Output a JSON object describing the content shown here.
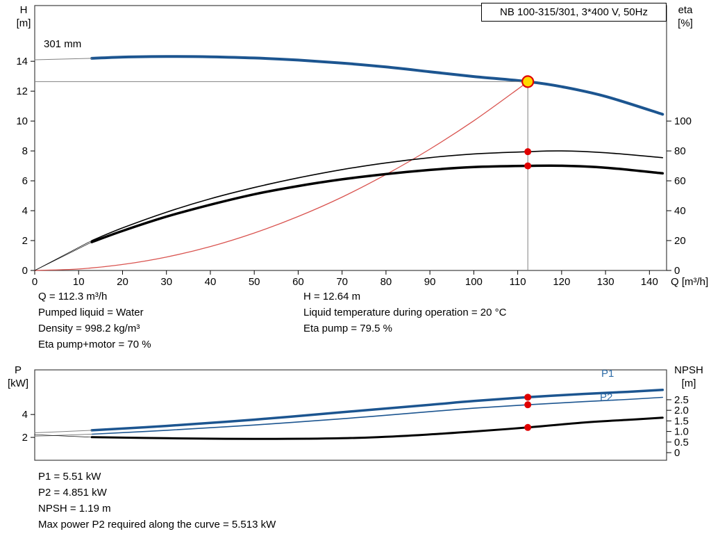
{
  "title_box": "NB 100-315/301, 3*400 V, 50Hz",
  "info_top": {
    "left": [
      "Q = 112.3 m³/h",
      "Pumped liquid = Water",
      "Density = 998.2 kg/m³",
      "Eta pump+motor = 70 %"
    ],
    "right": [
      "H = 12.64 m",
      "Liquid temperature during operation = 20 °C",
      "Eta pump = 79.5 %"
    ]
  },
  "info_bottom": [
    "P1 = 5.51 kW",
    "P2 = 4.851 kW",
    "NPSH = 1.19 m",
    "Max power P2 required along the curve = 5.513 kW"
  ],
  "colors": {
    "curve_blue": "#1c5590",
    "label_blue": "#2f6da8",
    "red": "#e00000",
    "system_red": "#d9534f",
    "black": "#000000",
    "gray": "#808080",
    "frame": "#404040",
    "duty_yellow": "#ffd800"
  },
  "chart_data": [
    {
      "type": "line",
      "name": "qh-eta-chart",
      "impeller_label": "301 mm",
      "x": {
        "label": "Q [m³/h]",
        "min": 0,
        "max": 143.9,
        "ticks": [
          0,
          10,
          20,
          30,
          40,
          50,
          60,
          70,
          80,
          90,
          100,
          110,
          120,
          130,
          140
        ]
      },
      "y_left": {
        "label": "H",
        "unit": "[m]",
        "min": 0,
        "max": 17.73,
        "ticks": [
          0,
          2,
          4,
          6,
          8,
          10,
          12,
          14
        ]
      },
      "y_right": {
        "label": "eta",
        "unit": "[%]",
        "min": 0,
        "max": 177.3,
        "ticks": [
          0,
          20,
          40,
          60,
          80,
          100
        ]
      },
      "crosshair": {
        "q": 112.3,
        "value": 12.64,
        "axis": "left"
      },
      "series": [
        {
          "name": "head-curve-301mm",
          "axis": "left",
          "color": "curve_blue",
          "width": 4,
          "points": [
            [
              13,
              14.2
            ],
            [
              20,
              14.28
            ],
            [
              30,
              14.32
            ],
            [
              40,
              14.3
            ],
            [
              50,
              14.22
            ],
            [
              60,
              14.08
            ],
            [
              70,
              13.88
            ],
            [
              80,
              13.62
            ],
            [
              90,
              13.3
            ],
            [
              100,
              12.98
            ],
            [
              112.3,
              12.64
            ],
            [
              120,
              12.3
            ],
            [
              130,
              11.65
            ],
            [
              143,
              10.45
            ]
          ]
        },
        {
          "name": "head-leader",
          "axis": "left",
          "color": "gray",
          "width": 1,
          "points": [
            [
              0,
              14.1
            ],
            [
              13,
              14.2
            ]
          ]
        },
        {
          "name": "system-curve",
          "axis": "left",
          "color": "system_red",
          "width": 1.3,
          "points": [
            [
              0,
              0
            ],
            [
              10,
              0.1
            ],
            [
              20,
              0.4
            ],
            [
              30,
              0.9
            ],
            [
              40,
              1.6
            ],
            [
              50,
              2.51
            ],
            [
              60,
              3.61
            ],
            [
              70,
              4.91
            ],
            [
              80,
              6.42
            ],
            [
              90,
              8.12
            ],
            [
              100,
              10.02
            ],
            [
              110,
              12.13
            ],
            [
              112.3,
              12.64
            ]
          ]
        },
        {
          "name": "eta-pump-curve",
          "axis": "right",
          "color": "black",
          "width": 1.6,
          "points": [
            [
              13,
              20
            ],
            [
              20,
              28.5
            ],
            [
              30,
              39
            ],
            [
              40,
              48
            ],
            [
              50,
              55.5
            ],
            [
              60,
              62
            ],
            [
              70,
              67.5
            ],
            [
              80,
              72
            ],
            [
              90,
              75.5
            ],
            [
              100,
              78
            ],
            [
              112.3,
              79.5
            ],
            [
              120,
              80
            ],
            [
              130,
              78.8
            ],
            [
              143,
              75.5
            ]
          ]
        },
        {
          "name": "eta-pump-leader",
          "axis": "right",
          "color": "black",
          "width": 0.7,
          "points": [
            [
              0,
              0
            ],
            [
              13,
              20
            ]
          ]
        },
        {
          "name": "eta-pump-motor-curve",
          "axis": "right",
          "color": "black",
          "width": 3.5,
          "points": [
            [
              13,
              19
            ],
            [
              20,
              26.5
            ],
            [
              30,
              36
            ],
            [
              40,
              44
            ],
            [
              50,
              51
            ],
            [
              60,
              56.5
            ],
            [
              70,
              61
            ],
            [
              80,
              64.5
            ],
            [
              90,
              67.3
            ],
            [
              100,
              69.2
            ],
            [
              112.3,
              70
            ],
            [
              120,
              70.1
            ],
            [
              130,
              68.8
            ],
            [
              143,
              65
            ]
          ]
        },
        {
          "name": "eta-pump-motor-leader",
          "axis": "right",
          "color": "black",
          "width": 0.7,
          "points": [
            [
              0,
              0
            ],
            [
              13,
              19
            ]
          ]
        }
      ],
      "markers": [
        {
          "name": "duty-point-marker",
          "q": 112.3,
          "value": 12.64,
          "axis": "left",
          "style": "duty"
        },
        {
          "name": "eta-pump-point",
          "q": 112.3,
          "value": 79.5,
          "axis": "right",
          "style": "dot"
        },
        {
          "name": "eta-pump-motor-point",
          "q": 112.3,
          "value": 70,
          "axis": "right",
          "style": "dot"
        }
      ]
    },
    {
      "type": "line",
      "name": "power-npsh-chart",
      "x": {
        "label": "",
        "min": 0,
        "max": 143.9,
        "ticks": []
      },
      "y_left": {
        "label": "P",
        "unit": "[kW]",
        "min": 0,
        "max": 7.9,
        "ticks": [
          2,
          4
        ]
      },
      "y_right": {
        "label": "NPSH",
        "unit": "[m]",
        "min": -0.36,
        "max": 3.91,
        "ticks": [
          0,
          0.5,
          1,
          1.5,
          2,
          2.5
        ],
        "tick_labels": [
          "0",
          "0.5",
          "1.0",
          "1.5",
          "2.0",
          "2.5"
        ]
      },
      "series": [
        {
          "name": "P1",
          "axis": "left",
          "color": "curve_blue",
          "width": 3.5,
          "points": [
            [
              13,
              2.62
            ],
            [
              30,
              3.0
            ],
            [
              50,
              3.55
            ],
            [
              70,
              4.2
            ],
            [
              90,
              4.85
            ],
            [
              100,
              5.18
            ],
            [
              112.3,
              5.51
            ],
            [
              125,
              5.8
            ],
            [
              135,
              5.98
            ],
            [
              143,
              6.15
            ]
          ]
        },
        {
          "name": "P1-leader",
          "axis": "left",
          "color": "gray",
          "width": 1,
          "points": [
            [
              0,
              2.4
            ],
            [
              13,
              2.62
            ]
          ]
        },
        {
          "name": "P2",
          "axis": "left",
          "color": "curve_blue",
          "width": 1.6,
          "points": [
            [
              13,
              2.28
            ],
            [
              30,
              2.62
            ],
            [
              50,
              3.08
            ],
            [
              70,
              3.63
            ],
            [
              90,
              4.25
            ],
            [
              100,
              4.55
            ],
            [
              112.3,
              4.851
            ],
            [
              125,
              5.12
            ],
            [
              135,
              5.32
            ],
            [
              143,
              5.5
            ]
          ]
        },
        {
          "name": "P2-leader",
          "axis": "left",
          "color": "gray",
          "width": 1,
          "points": [
            [
              0,
              2.1
            ],
            [
              13,
              2.28
            ]
          ]
        },
        {
          "name": "npsh-curve",
          "axis": "right",
          "color": "black",
          "width": 3,
          "points": [
            [
              13,
              0.73
            ],
            [
              30,
              0.68
            ],
            [
              50,
              0.65
            ],
            [
              70,
              0.68
            ],
            [
              85,
              0.8
            ],
            [
              100,
              1.0
            ],
            [
              112.3,
              1.19
            ],
            [
              125,
              1.42
            ],
            [
              135,
              1.55
            ],
            [
              143,
              1.65
            ]
          ]
        },
        {
          "name": "npsh-leader",
          "axis": "right",
          "color": "black",
          "width": 0.7,
          "points": [
            [
              0,
              0.85
            ],
            [
              13,
              0.73
            ]
          ]
        }
      ],
      "markers": [
        {
          "name": "p1-point",
          "q": 112.3,
          "value": 5.51,
          "axis": "left",
          "style": "dot"
        },
        {
          "name": "p2-point",
          "q": 112.3,
          "value": 4.851,
          "axis": "left",
          "style": "dot"
        },
        {
          "name": "npsh-point",
          "q": 112.3,
          "value": 1.19,
          "axis": "right",
          "style": "dot"
        }
      ]
    }
  ]
}
